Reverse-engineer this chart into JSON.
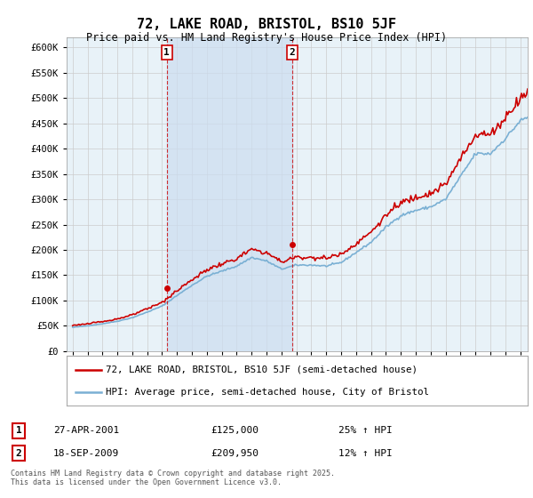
{
  "title": "72, LAKE ROAD, BRISTOL, BS10 5JF",
  "subtitle": "Price paid vs. HM Land Registry's House Price Index (HPI)",
  "red_color": "#cc0000",
  "blue_color": "#7ab0d4",
  "shade_color": "#ccddf0",
  "grid_color": "#cccccc",
  "plot_bg": "#e8f2f8",
  "fig_bg": "#ffffff",
  "ylim": [
    0,
    620000
  ],
  "sale1_x": 2001.32,
  "sale1_price": 125000,
  "sale1_label": "1",
  "sale1_date": "27-APR-2001",
  "sale1_hpi": "25% ↑ HPI",
  "sale2_x": 2009.72,
  "sale2_price": 209950,
  "sale2_label": "2",
  "sale2_date": "18-SEP-2009",
  "sale2_hpi": "12% ↑ HPI",
  "legend1": "72, LAKE ROAD, BRISTOL, BS10 5JF (semi-detached house)",
  "legend2": "HPI: Average price, semi-detached house, City of Bristol",
  "footnote": "Contains HM Land Registry data © Crown copyright and database right 2025.\nThis data is licensed under the Open Government Licence v3.0."
}
